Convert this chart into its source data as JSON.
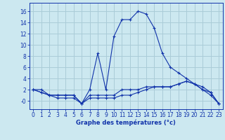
{
  "title": "Graphe des températures (°c)",
  "background_color": "#cce8f0",
  "grid_color": "#aaccd8",
  "line_color": "#1133aa",
  "x_hours": [
    0,
    1,
    2,
    3,
    4,
    5,
    6,
    7,
    8,
    9,
    10,
    11,
    12,
    13,
    14,
    15,
    16,
    17,
    18,
    19,
    20,
    21,
    22,
    23
  ],
  "temp_main": [
    2,
    2,
    1,
    1,
    1,
    1,
    -0.5,
    2,
    8.5,
    2,
    11.5,
    14.5,
    14.5,
    16,
    15.5,
    13,
    8.5,
    6,
    5,
    4,
    3,
    2,
    1.5,
    -0.5
  ],
  "temp_line2": [
    2,
    1.5,
    1,
    1,
    1,
    1,
    -0.5,
    1,
    1,
    1,
    1,
    2,
    2,
    2,
    2.5,
    2.5,
    2.5,
    2.5,
    3,
    3.5,
    3,
    2.5,
    1.5,
    -0.5
  ],
  "temp_line3": [
    2,
    1.5,
    1,
    0.5,
    0.5,
    0.5,
    -0.5,
    0.5,
    0.5,
    0.5,
    0.5,
    1,
    1,
    1.5,
    2,
    2.5,
    2.5,
    2.5,
    3,
    3.5,
    3,
    2,
    1,
    -0.5
  ],
  "ylim_min": -1.5,
  "ylim_max": 17.5,
  "ytick_vals": [
    16,
    14,
    12,
    10,
    8,
    6,
    4,
    2,
    0
  ],
  "ytick_labels": [
    "16",
    "14",
    "12",
    "10",
    "8",
    "6",
    "4",
    "2",
    "-0"
  ],
  "ylabel_fontsize": 5.5,
  "xlabel_fontsize": 6.0,
  "tick_labelsize": 5.5
}
